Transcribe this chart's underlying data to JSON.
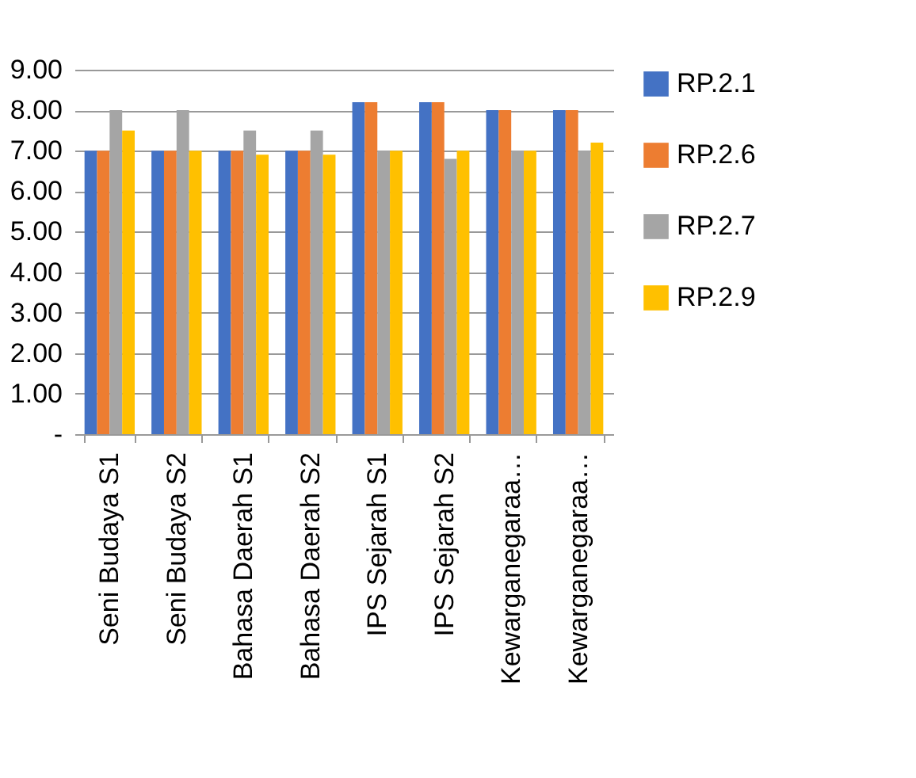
{
  "chart_data": {
    "type": "bar",
    "categories": [
      "Seni Budaya S1",
      "Seni Budaya S2",
      "Bahasa Daerah S1",
      "Bahasa Daerah S2",
      "IPS Sejarah S1",
      "IPS Sejarah S2",
      "Kewarganegaraa…",
      "Kewarganegaraa…"
    ],
    "series": [
      {
        "name": "RP.2.1",
        "color": "#4472c4",
        "values": [
          7,
          7,
          7,
          7,
          8.2,
          8.2,
          8,
          8
        ]
      },
      {
        "name": "RP.2.6",
        "color": "#ed7d31",
        "values": [
          7,
          7,
          7,
          7,
          8.2,
          8.2,
          8,
          8
        ]
      },
      {
        "name": "RP.2.7",
        "color": "#a5a5a5",
        "values": [
          8,
          8,
          7.5,
          7.5,
          7,
          6.8,
          7,
          7
        ]
      },
      {
        "name": "RP.2.9",
        "color": "#ffc000",
        "values": [
          7.5,
          7,
          6.9,
          6.9,
          7,
          7,
          7,
          7.2
        ]
      }
    ],
    "ylim": [
      0,
      9
    ],
    "yticks": [
      {
        "value": 0,
        "label": "-"
      },
      {
        "value": 1,
        "label": "1.00"
      },
      {
        "value": 2,
        "label": "2.00"
      },
      {
        "value": 3,
        "label": "3.00"
      },
      {
        "value": 4,
        "label": "4.00"
      },
      {
        "value": 5,
        "label": "5.00"
      },
      {
        "value": 6,
        "label": "6.00"
      },
      {
        "value": 7,
        "label": "7.00"
      },
      {
        "value": 8,
        "label": "8.00"
      },
      {
        "value": 9,
        "label": "9.00"
      }
    ],
    "grid": "y",
    "legend": "right"
  }
}
